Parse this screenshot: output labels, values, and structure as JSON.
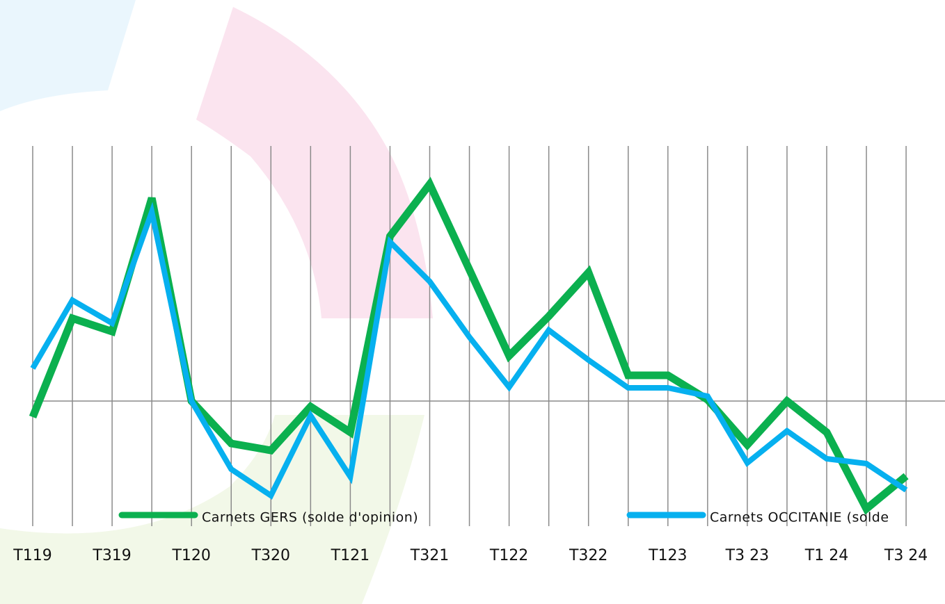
{
  "chart_data": {
    "type": "line",
    "categories": [
      "T119",
      null,
      "T319",
      null,
      "T120",
      null,
      "T320",
      null,
      "T121",
      null,
      "T321",
      null,
      "T122",
      null,
      "T322",
      null,
      "T123",
      null,
      "T3 23",
      null,
      "T1 24",
      null,
      "T3 24"
    ],
    "series": [
      {
        "name": "Carnets GERS (solde d'opinion)",
        "color": "#0bb04f",
        "values": [
          -2.3,
          11.9,
          10.0,
          29.2,
          0,
          -6.1,
          -7.1,
          -0.8,
          -4.5,
          23.7,
          31.2,
          18.9,
          6.5,
          12.2,
          18.5,
          3.7,
          3.7,
          0.2,
          -6.3,
          0,
          -4.5,
          -15.5,
          -10.8
        ]
      },
      {
        "name": "Carnets OCCITANIE (solde",
        "color": "#06b0ef",
        "values": [
          4.7,
          14.5,
          11.2,
          27.2,
          0,
          -9.8,
          -13.6,
          -2.1,
          -10.9,
          22.9,
          17.2,
          9.2,
          2.0,
          10.2,
          5.9,
          1.9,
          1.9,
          0.7,
          -8.9,
          -4.3,
          -8.3,
          -9.0,
          -12.8
        ]
      }
    ],
    "ylim": [
      -18,
      38
    ]
  }
}
